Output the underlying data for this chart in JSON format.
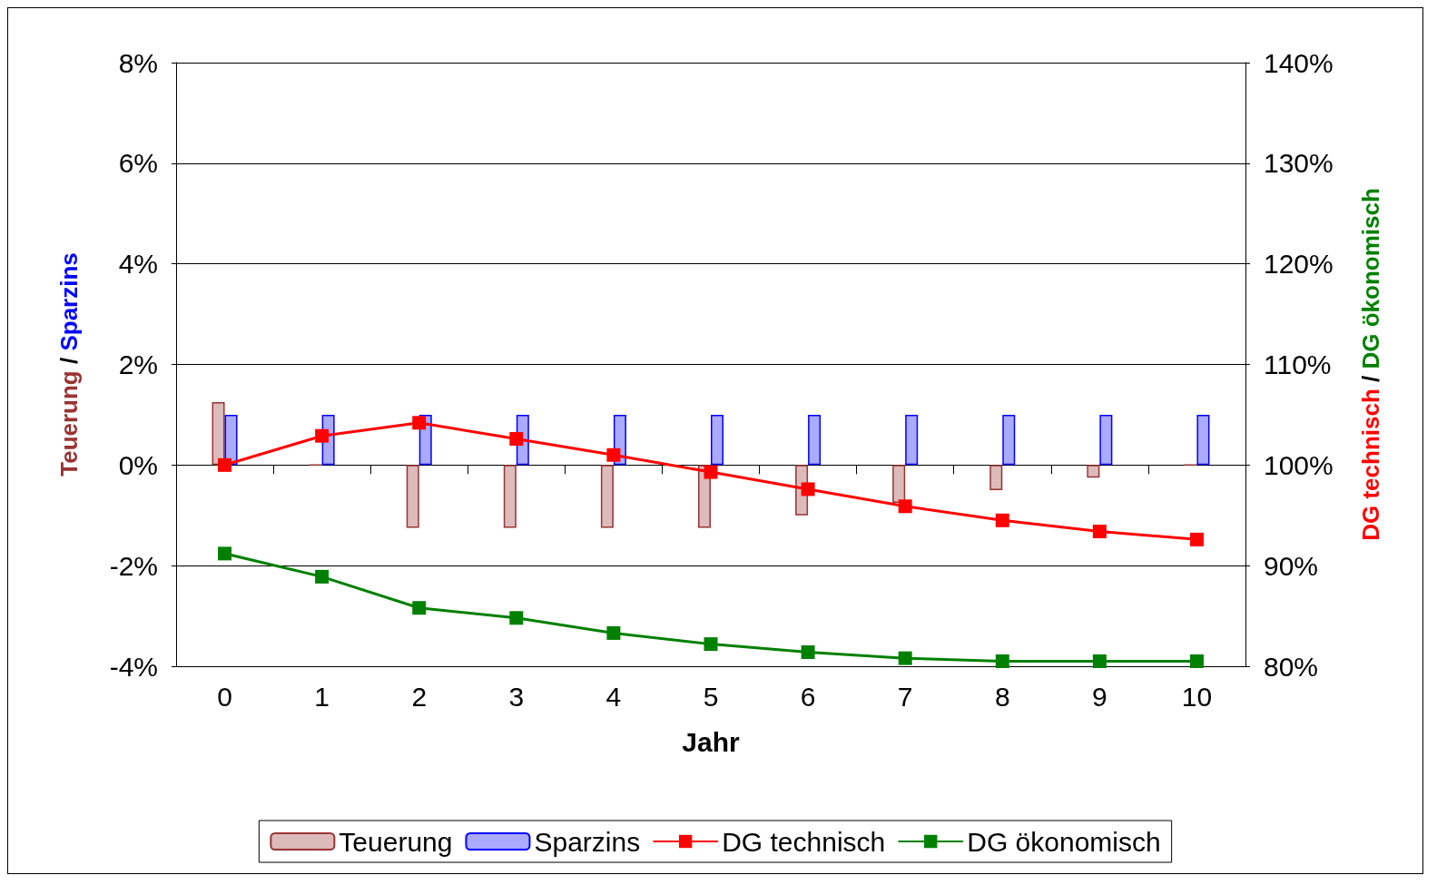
{
  "chart_data": {
    "type": "bar",
    "xlabel": "Jahr",
    "ylabel": "Teuerung / Sparzins",
    "y2label": "DG technisch / DG ökonomisch",
    "categories": [
      "0",
      "1",
      "2",
      "3",
      "4",
      "5",
      "6",
      "7",
      "8",
      "9",
      "10"
    ],
    "series": [
      {
        "name": "Teuerung",
        "color": "#993333",
        "values": [
          1.25,
          0,
          -1.25,
          -1.25,
          -1.25,
          -1.25,
          -1,
          -0.75,
          -0.5,
          -0.25,
          0
        ]
      },
      {
        "name": "Sparzins",
        "color": "#0000ff",
        "values": [
          1,
          1,
          1,
          1,
          1,
          1,
          1,
          1,
          1,
          1,
          1
        ]
      },
      {
        "name": "DG technisch",
        "type": "line",
        "axis": "y2",
        "color": "#ff0000",
        "values": [
          100,
          102.9,
          104.2,
          102.6,
          101,
          99.3,
          97.6,
          95.9,
          94.5,
          93.4,
          92.6
        ]
      },
      {
        "name": "DG ökonomisch",
        "type": "line",
        "axis": "y2",
        "color": "#008000",
        "values": [
          91.2,
          88.9,
          85.8,
          84.8,
          83.3,
          82.2,
          81.4,
          80.8,
          80.5,
          80.5,
          80.5
        ]
      }
    ],
    "ylim": [
      -4,
      8
    ],
    "yticks": [
      {
        "value": -4,
        "label": "-4%"
      },
      {
        "value": -2,
        "label": "-2%"
      },
      {
        "value": 0,
        "label": "0%"
      },
      {
        "value": 2,
        "label": "2%"
      },
      {
        "value": 4,
        "label": "4%"
      },
      {
        "value": 6,
        "label": "6%"
      },
      {
        "value": 8,
        "label": "8%"
      }
    ],
    "y2lim": [
      80,
      140
    ],
    "y2ticks": [
      {
        "value": 80,
        "label": "80%"
      },
      {
        "value": 90,
        "label": "90%"
      },
      {
        "value": 100,
        "label": "100%"
      },
      {
        "value": 110,
        "label": "110%"
      },
      {
        "value": 120,
        "label": "120%"
      },
      {
        "value": 130,
        "label": "130%"
      },
      {
        "value": 140,
        "label": "140%"
      }
    ],
    "grid": "y",
    "legend": "bottom",
    "marker": "square",
    "line_style": "solid"
  }
}
